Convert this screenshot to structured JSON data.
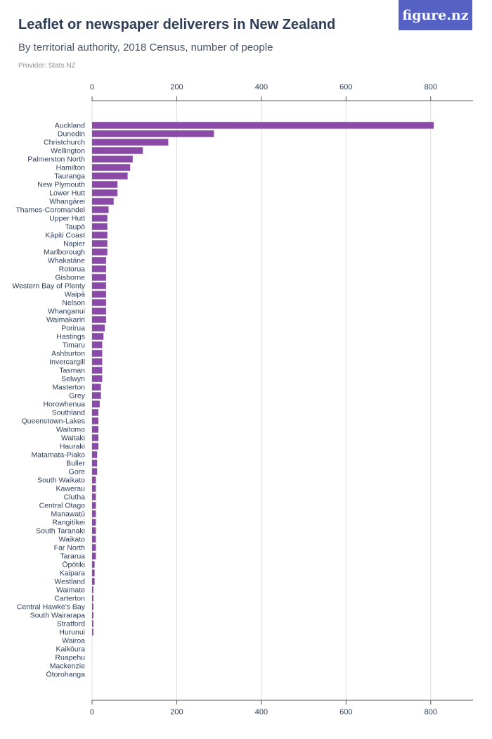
{
  "header": {
    "title": "Leaflet or newspaper deliverers in New Zealand",
    "subtitle": "By territorial authority, 2018 Census, number of people",
    "provider": "Provider: Stats NZ",
    "brand_logo": "figure.nz"
  },
  "colors": {
    "bar": "#8a4aa8",
    "grid": "#dcdcdc",
    "axis": "#555555",
    "text": "#2f3e57",
    "brand": "#5562c4"
  },
  "chart_data": {
    "type": "bar",
    "orientation": "horizontal",
    "title": "Leaflet or newspaper deliverers in New Zealand",
    "subtitle": "By territorial authority, 2018 Census, number of people",
    "xlim": [
      0,
      900
    ],
    "xticks": [
      0,
      200,
      400,
      600,
      800
    ],
    "grid": true,
    "categories": [
      "Auckland",
      "Dunedin",
      "Christchurch",
      "Wellington",
      "Palmerston North",
      "Hamilton",
      "Tauranga",
      "New Plymouth",
      "Lower Hutt",
      "Whangārei",
      "Thames-Coromandel",
      "Upper Hutt",
      "Taupō",
      "Kāpiti Coast",
      "Napier",
      "Marlborough",
      "Whakatāne",
      "Rotorua",
      "Gisborne",
      "Western Bay of Plenty",
      "Waipā",
      "Nelson",
      "Whanganui",
      "Waimakariri",
      "Porirua",
      "Hastings",
      "Timaru",
      "Ashburton",
      "Invercargill",
      "Tasman",
      "Selwyn",
      "Masterton",
      "Grey",
      "Horowhenua",
      "Southland",
      "Queenstown-Lakes",
      "Waitomo",
      "Waitaki",
      "Hauraki",
      "Matamata-Piako",
      "Buller",
      "Gore",
      "South Waikato",
      "Kawerau",
      "Clutha",
      "Central Otago",
      "Manawatū",
      "Rangitīkei",
      "South Taranaki",
      "Waikato",
      "Far North",
      "Tararua",
      "Ōpōtiki",
      "Kaipara",
      "Westland",
      "Waimate",
      "Carterton",
      "Central Hawke's Bay",
      "South Wairarapa",
      "Stratford",
      "Hurunui",
      "Wairoa",
      "Kaikōura",
      "Ruapehu",
      "Mackenzie",
      "Ōtorohanga"
    ],
    "values": [
      807,
      288,
      180,
      120,
      96,
      90,
      84,
      60,
      60,
      51,
      39,
      36,
      36,
      36,
      36,
      36,
      33,
      33,
      33,
      33,
      33,
      33,
      33,
      33,
      30,
      27,
      24,
      24,
      24,
      24,
      24,
      21,
      21,
      18,
      15,
      15,
      15,
      15,
      15,
      12,
      12,
      12,
      9,
      9,
      9,
      9,
      9,
      9,
      9,
      9,
      9,
      9,
      6,
      6,
      6,
      3,
      3,
      3,
      3,
      3,
      3,
      0,
      0,
      0,
      0,
      0
    ]
  }
}
